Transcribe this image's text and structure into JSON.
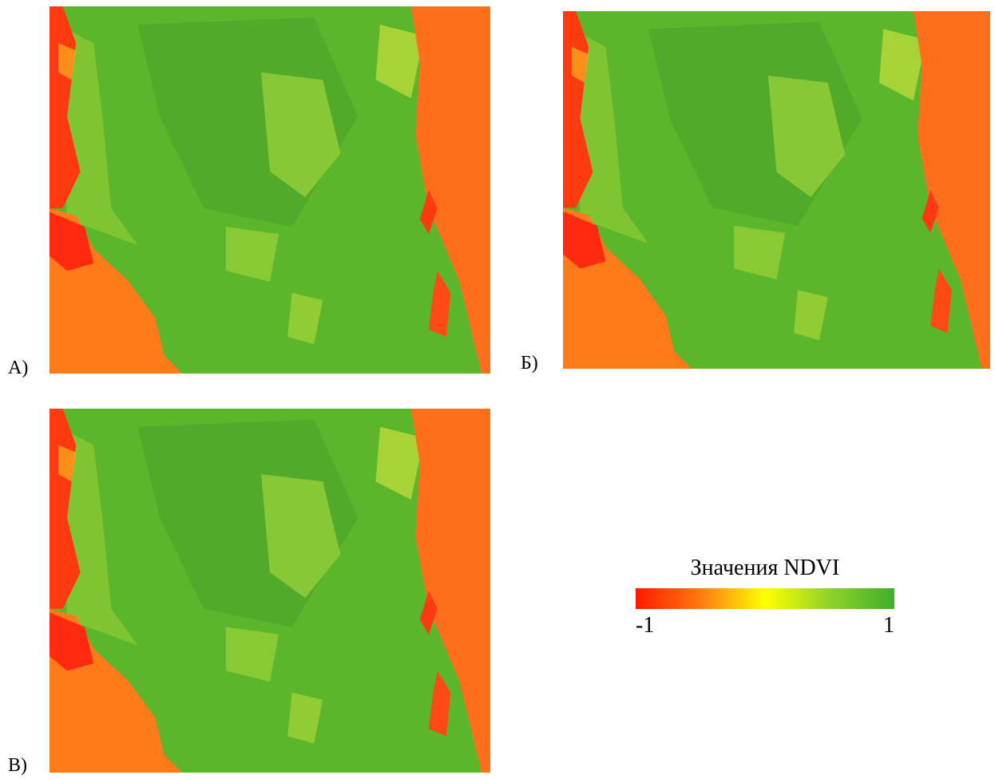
{
  "panels": [
    {
      "label": "А)"
    },
    {
      "label": "Б)"
    },
    {
      "label": "В)"
    }
  ],
  "legend": {
    "title": "Значения NDVI",
    "min": -1,
    "max": 1,
    "colors": [
      "#ff1a00",
      "#ff7a10",
      "#ffff00",
      "#8fd22a",
      "#3fae2a"
    ]
  }
}
